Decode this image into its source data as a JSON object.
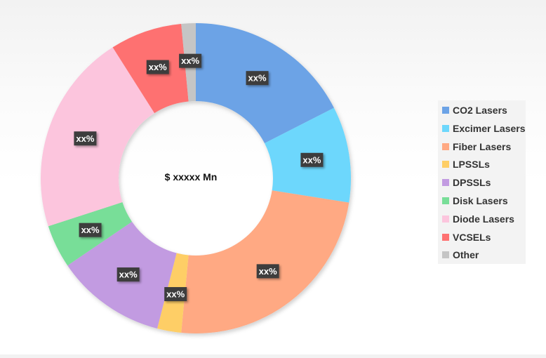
{
  "chart_data": {
    "type": "pie",
    "variant": "donut",
    "center_label": "$ xxxxx Mn",
    "legend_position": "right",
    "categories": [
      "CO2 Lasers",
      "Excimer Lasers",
      "Fiber Lasers",
      "LPSSLs",
      "DPSSLs",
      "Disk Lasers",
      "Diode Lasers",
      "VCSELs",
      "Other"
    ],
    "values": [
      17.5,
      10,
      24,
      2.5,
      11.5,
      4.5,
      21,
      7.5,
      1.5
    ],
    "data_labels": [
      "xx%",
      "xx%",
      "xx%",
      "xx%",
      "xx%",
      "xx%",
      "xx%",
      "xx%",
      "xx%"
    ],
    "colors": [
      "#6CA3E6",
      "#6DD7FC",
      "#FFA983",
      "#FECE66",
      "#C29BE1",
      "#78DE98",
      "#FCC5DD",
      "#FE7171",
      "#C5C5C5"
    ]
  }
}
